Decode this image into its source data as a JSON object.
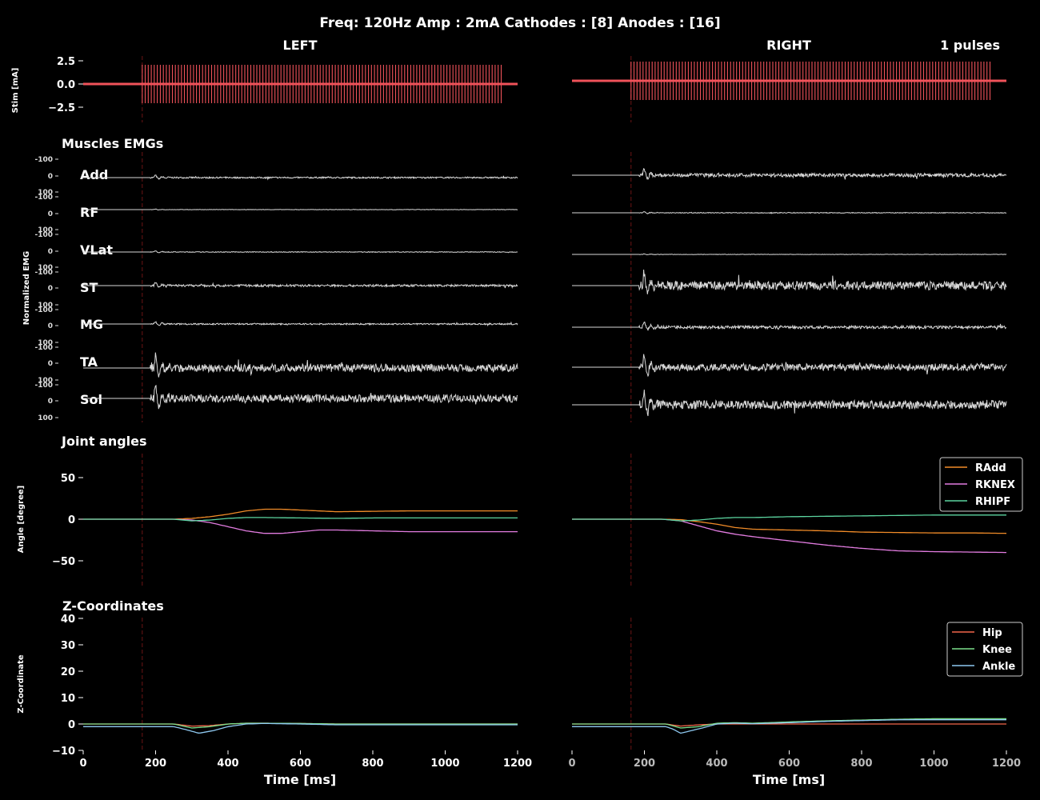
{
  "title": "Freq: 120Hz  Amp : 2mA  Cathodes : [8]  Anodes : [16]",
  "left_title": "LEFT",
  "right_title": "RIGHT",
  "pulses_label": "1 pulses",
  "colors": {
    "background": "#000000",
    "stim": "#f0525a",
    "emg": "#d8d8d8",
    "stim_onset_line": "#5a1010",
    "add": "#f28c28",
    "knee_angle": "#e27ce0",
    "hip_angle": "#5cd5a0",
    "hip_z": "#f2664a",
    "knee_z": "#7ce08c",
    "ankle_z": "#8ec8f0"
  },
  "chart_data": [
    {
      "type": "line",
      "panel": "stim",
      "ylabel": "Stim [mA]",
      "xlim": [
        0,
        1200
      ],
      "ylim": [
        -3.5,
        3.5
      ],
      "yticks": [
        "2.5",
        "0.0",
        "−2.5"
      ],
      "yticks_values": [
        2.5,
        0,
        -2.5
      ],
      "stim_onset_ms": 163,
      "left": {
        "baseline": 0,
        "train_start_ms": 163,
        "train_end_ms": 1157,
        "frequency_hz": 120,
        "amplitude_ma": 2
      },
      "right": {
        "baseline": 0.35,
        "train_start_ms": 163,
        "train_end_ms": 1157,
        "frequency_hz": 120,
        "amplitude_ma": 2
      }
    },
    {
      "type": "line",
      "panel": "emg",
      "section_title": "Muscles EMGs",
      "ylabel": "Normalized EMG",
      "xlim": [
        0,
        1200
      ],
      "tick_labels": [
        "-100",
        "0",
        "100"
      ],
      "muscles": [
        "Add",
        "RF",
        "VLat",
        "ST",
        "MG",
        "TA",
        "Sol"
      ],
      "left_peak": [
        4,
        1,
        2,
        6,
        4,
        22,
        22
      ],
      "right_peak": [
        10,
        2,
        1,
        24,
        8,
        20,
        24
      ]
    },
    {
      "type": "line",
      "panel": "joint_angles",
      "section_title": "Joint angles",
      "ylabel": "Angle [degree]",
      "xlim": [
        0,
        1200
      ],
      "ylim": [
        -80,
        80
      ],
      "yticks": [
        50,
        0,
        -50
      ],
      "legend": "top-right",
      "series_names": [
        "RAdd",
        "RKNEX",
        "RHIPF"
      ],
      "left": [
        {
          "name": "RAdd",
          "x": [
            0,
            250,
            300,
            350,
            400,
            450,
            500,
            550,
            600,
            650,
            700,
            800,
            900,
            1000,
            1100,
            1200
          ],
          "y": [
            0,
            0,
            1,
            3,
            6,
            10,
            12,
            12,
            11,
            10,
            9,
            9.5,
            10,
            10,
            10,
            10
          ]
        },
        {
          "name": "RKNEX",
          "x": [
            0,
            250,
            300,
            350,
            400,
            450,
            500,
            550,
            600,
            650,
            700,
            800,
            900,
            1000,
            1100,
            1200
          ],
          "y": [
            0,
            0,
            -1,
            -4,
            -9,
            -14,
            -17,
            -17,
            -15,
            -13,
            -13,
            -14,
            -15,
            -15,
            -15,
            -15
          ]
        },
        {
          "name": "RHIPF",
          "x": [
            0,
            250,
            300,
            350,
            400,
            450,
            500,
            600,
            700,
            800,
            900,
            1000,
            1100,
            1200
          ],
          "y": [
            0,
            0,
            -2,
            -1,
            1,
            2,
            2,
            1.5,
            1,
            1.5,
            1.5,
            1.5,
            1.5,
            1.5
          ]
        }
      ],
      "right": [
        {
          "name": "RAdd",
          "x": [
            0,
            250,
            300,
            350,
            400,
            450,
            500,
            600,
            700,
            800,
            900,
            1000,
            1100,
            1200
          ],
          "y": [
            0,
            0,
            -0.5,
            -3,
            -6,
            -10,
            -12,
            -13,
            -14,
            -15.5,
            -16,
            -16.5,
            -16.5,
            -17
          ]
        },
        {
          "name": "RKNEX",
          "x": [
            0,
            250,
            300,
            350,
            400,
            450,
            500,
            600,
            700,
            800,
            900,
            1000,
            1100,
            1200
          ],
          "y": [
            0,
            0,
            -2,
            -8,
            -14,
            -18,
            -21,
            -26,
            -31,
            -35,
            -38,
            -39,
            -39.5,
            -40
          ]
        },
        {
          "name": "RHIPF",
          "x": [
            0,
            250,
            300,
            350,
            400,
            450,
            500,
            600,
            700,
            800,
            900,
            1000,
            1100,
            1200
          ],
          "y": [
            0,
            0,
            -2,
            -1,
            1,
            2,
            2,
            3,
            3.5,
            4,
            4.5,
            5,
            5,
            5
          ]
        }
      ]
    },
    {
      "type": "line",
      "panel": "z_coordinates",
      "section_title": "Z-Coordinates",
      "ylabel": "Z-Coordinate",
      "xlabel": "Time [ms]",
      "xlim": [
        0,
        1200
      ],
      "ylim": [
        -10,
        40
      ],
      "yticks": [
        40,
        30,
        20,
        10,
        0,
        -10
      ],
      "xticks": [
        0,
        200,
        400,
        600,
        800,
        1000,
        1200
      ],
      "legend": "top-right",
      "series_names": [
        "Hip",
        "Knee",
        "Ankle"
      ],
      "left": [
        {
          "name": "Hip",
          "x": [
            0,
            250,
            300,
            350,
            400,
            450,
            500,
            600,
            700,
            800,
            1200
          ],
          "y": [
            0,
            0,
            -0.8,
            -0.6,
            0,
            0.3,
            0.3,
            0.2,
            0,
            0,
            0
          ]
        },
        {
          "name": "Knee",
          "x": [
            0,
            250,
            300,
            350,
            400,
            450,
            500,
            600,
            700,
            800,
            1200
          ],
          "y": [
            0,
            0,
            -1.5,
            -1,
            0,
            0.3,
            0.3,
            0.2,
            0,
            0,
            0
          ]
        },
        {
          "name": "Ankle",
          "x": [
            0,
            250,
            280,
            320,
            360,
            400,
            450,
            500,
            600,
            700,
            800,
            1200
          ],
          "y": [
            -1,
            -1,
            -2,
            -3.5,
            -2.5,
            -1,
            0,
            0.2,
            0,
            -0.3,
            -0.3,
            -0.3
          ]
        }
      ],
      "right": [
        {
          "name": "Hip",
          "x": [
            0,
            260,
            300,
            350,
            400,
            450,
            500,
            1200
          ],
          "y": [
            0,
            0,
            -0.8,
            -0.3,
            0,
            0,
            0,
            0
          ]
        },
        {
          "name": "Knee",
          "x": [
            0,
            260,
            300,
            350,
            400,
            450,
            500,
            600,
            700,
            800,
            900,
            1000,
            1100,
            1200
          ],
          "y": [
            0,
            0,
            -1.5,
            -1,
            0.3,
            0.5,
            0.3,
            0.8,
            1.2,
            1.5,
            1.8,
            2,
            2,
            2
          ]
        },
        {
          "name": "Ankle",
          "x": [
            0,
            260,
            280,
            300,
            330,
            360,
            400,
            450,
            500,
            600,
            700,
            800,
            900,
            1000,
            1100,
            1200
          ],
          "y": [
            -1,
            -1,
            -2,
            -3.5,
            -2.5,
            -1.5,
            0,
            0.3,
            0.1,
            0.5,
            1,
            1.3,
            1.6,
            1.6,
            1.6,
            1.6
          ]
        }
      ]
    }
  ]
}
